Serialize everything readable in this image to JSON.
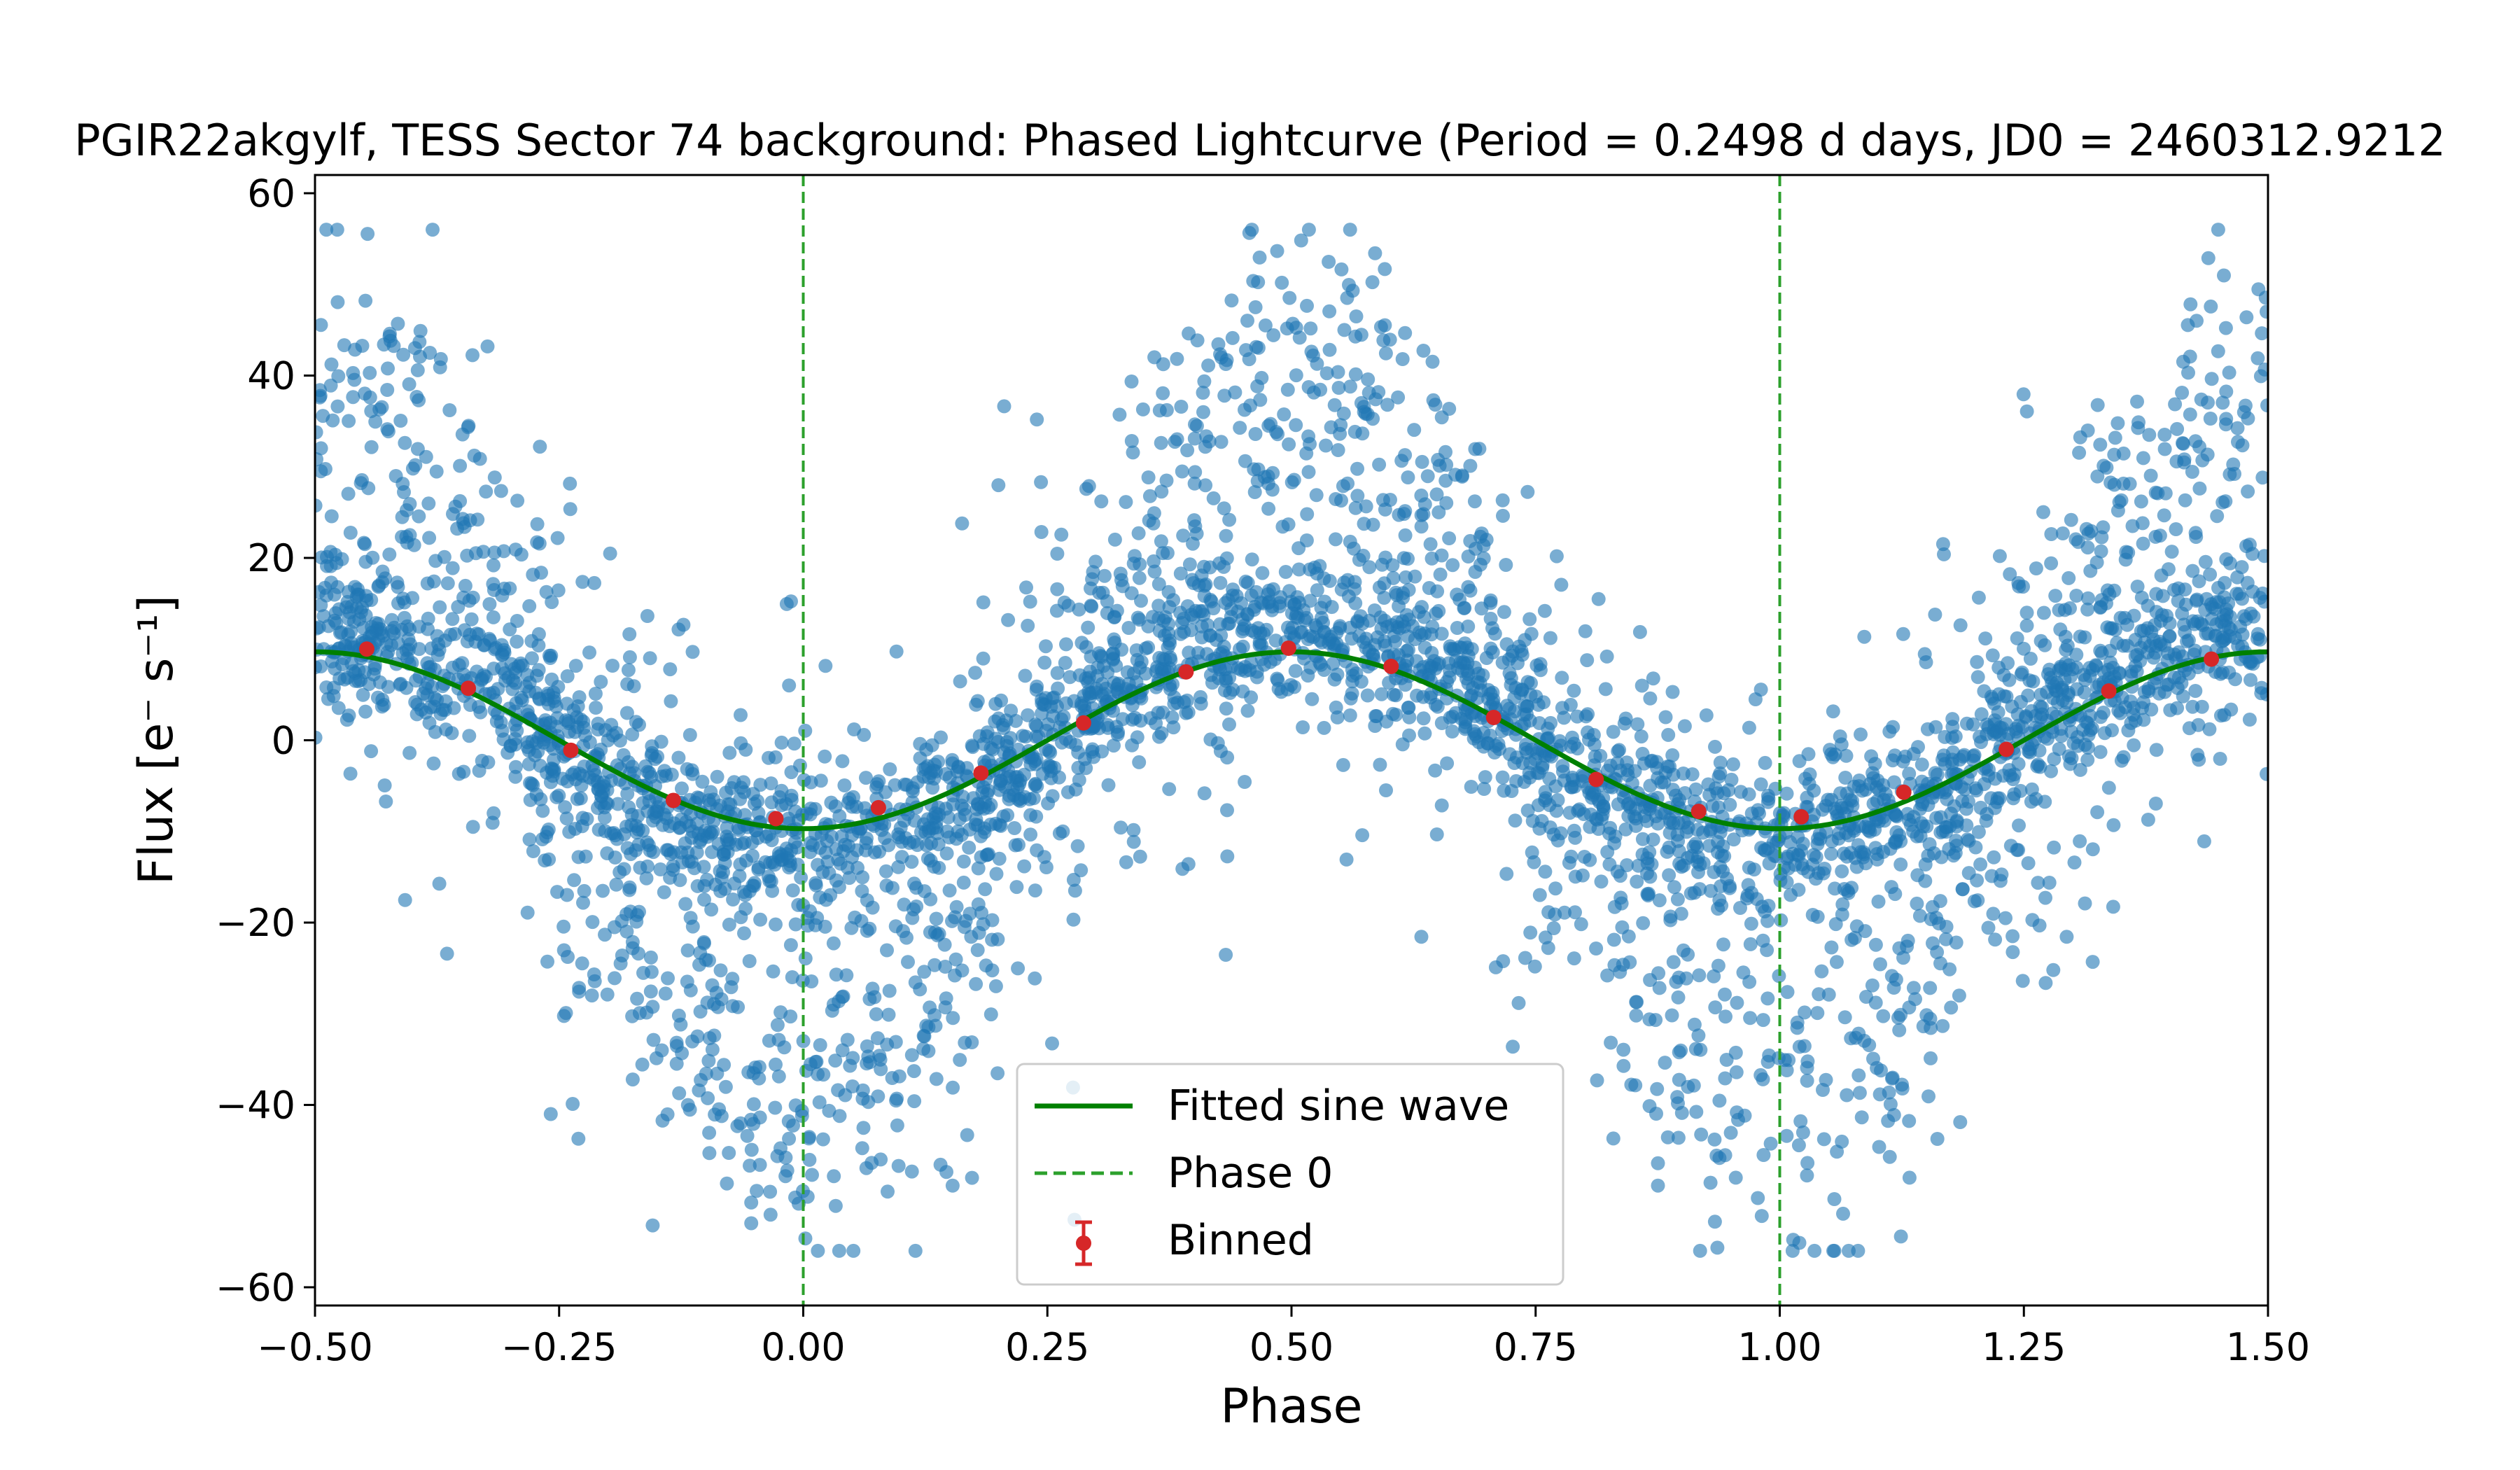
{
  "chart_data": {
    "type": "scatter",
    "title": "ZTF/PGIR22akgylf, TESS Sector 74 background: Phased Lightcurve (Period = 0.2498 d days, JD0 = 2460312.9212)",
    "title_visible": "PGIR22akgylf, TESS Sector 74 background: Phased Lightcurve (Period = 0.2498 d days, JD0 = 2460312.9212",
    "xlabel": "Phase",
    "ylabel": "Flux [e⁻ s⁻¹]",
    "xlim": [
      -0.5,
      1.5
    ],
    "ylim": [
      -62,
      62
    ],
    "x_ticks": [
      -0.5,
      -0.25,
      0.0,
      0.25,
      0.5,
      0.75,
      1.0,
      1.25,
      1.5
    ],
    "x_tick_labels": [
      "−0.50",
      "−0.25",
      "0.00",
      "0.25",
      "0.50",
      "0.75",
      "1.00",
      "1.25",
      "1.50"
    ],
    "y_ticks": [
      -60,
      -40,
      -20,
      0,
      20,
      40,
      60
    ],
    "y_tick_labels": [
      "−60",
      "−40",
      "−20",
      "0",
      "20",
      "40",
      "60"
    ],
    "grid": false,
    "legend_position": "bottom-center",
    "series": [
      {
        "name": "Fitted sine wave",
        "kind": "line",
        "color": "#008000",
        "amplitude": 9.7,
        "peak_phase": 0.5,
        "offset": 0
      },
      {
        "name": "Phase 0",
        "kind": "vline-dashed",
        "color": "#2ca02c",
        "x": [
          0.0,
          1.0
        ]
      },
      {
        "name": "Binned",
        "kind": "errorbar-points",
        "color": "#d62728",
        "x": [
          -0.447,
          -0.343,
          -0.238,
          -0.133,
          -0.028,
          0.077,
          0.182,
          0.287,
          0.392,
          0.497,
          0.602,
          0.707,
          0.812,
          0.917,
          1.022,
          1.127,
          1.232,
          1.337,
          1.442
        ],
        "y": [
          10.0,
          5.7,
          -1.1,
          -6.6,
          -8.6,
          -7.4,
          -3.6,
          1.9,
          7.5,
          10.1,
          8.1,
          2.5,
          -4.3,
          -7.8,
          -8.4,
          -5.7,
          -1.0,
          5.4,
          8.9
        ]
      },
      {
        "kind": "scatter-points",
        "color": "#1f77b4",
        "description_note": "dense phased flux measurements; core band between about -10 and 10, sparser envelope spanning about -56 to 56"
      }
    ]
  }
}
